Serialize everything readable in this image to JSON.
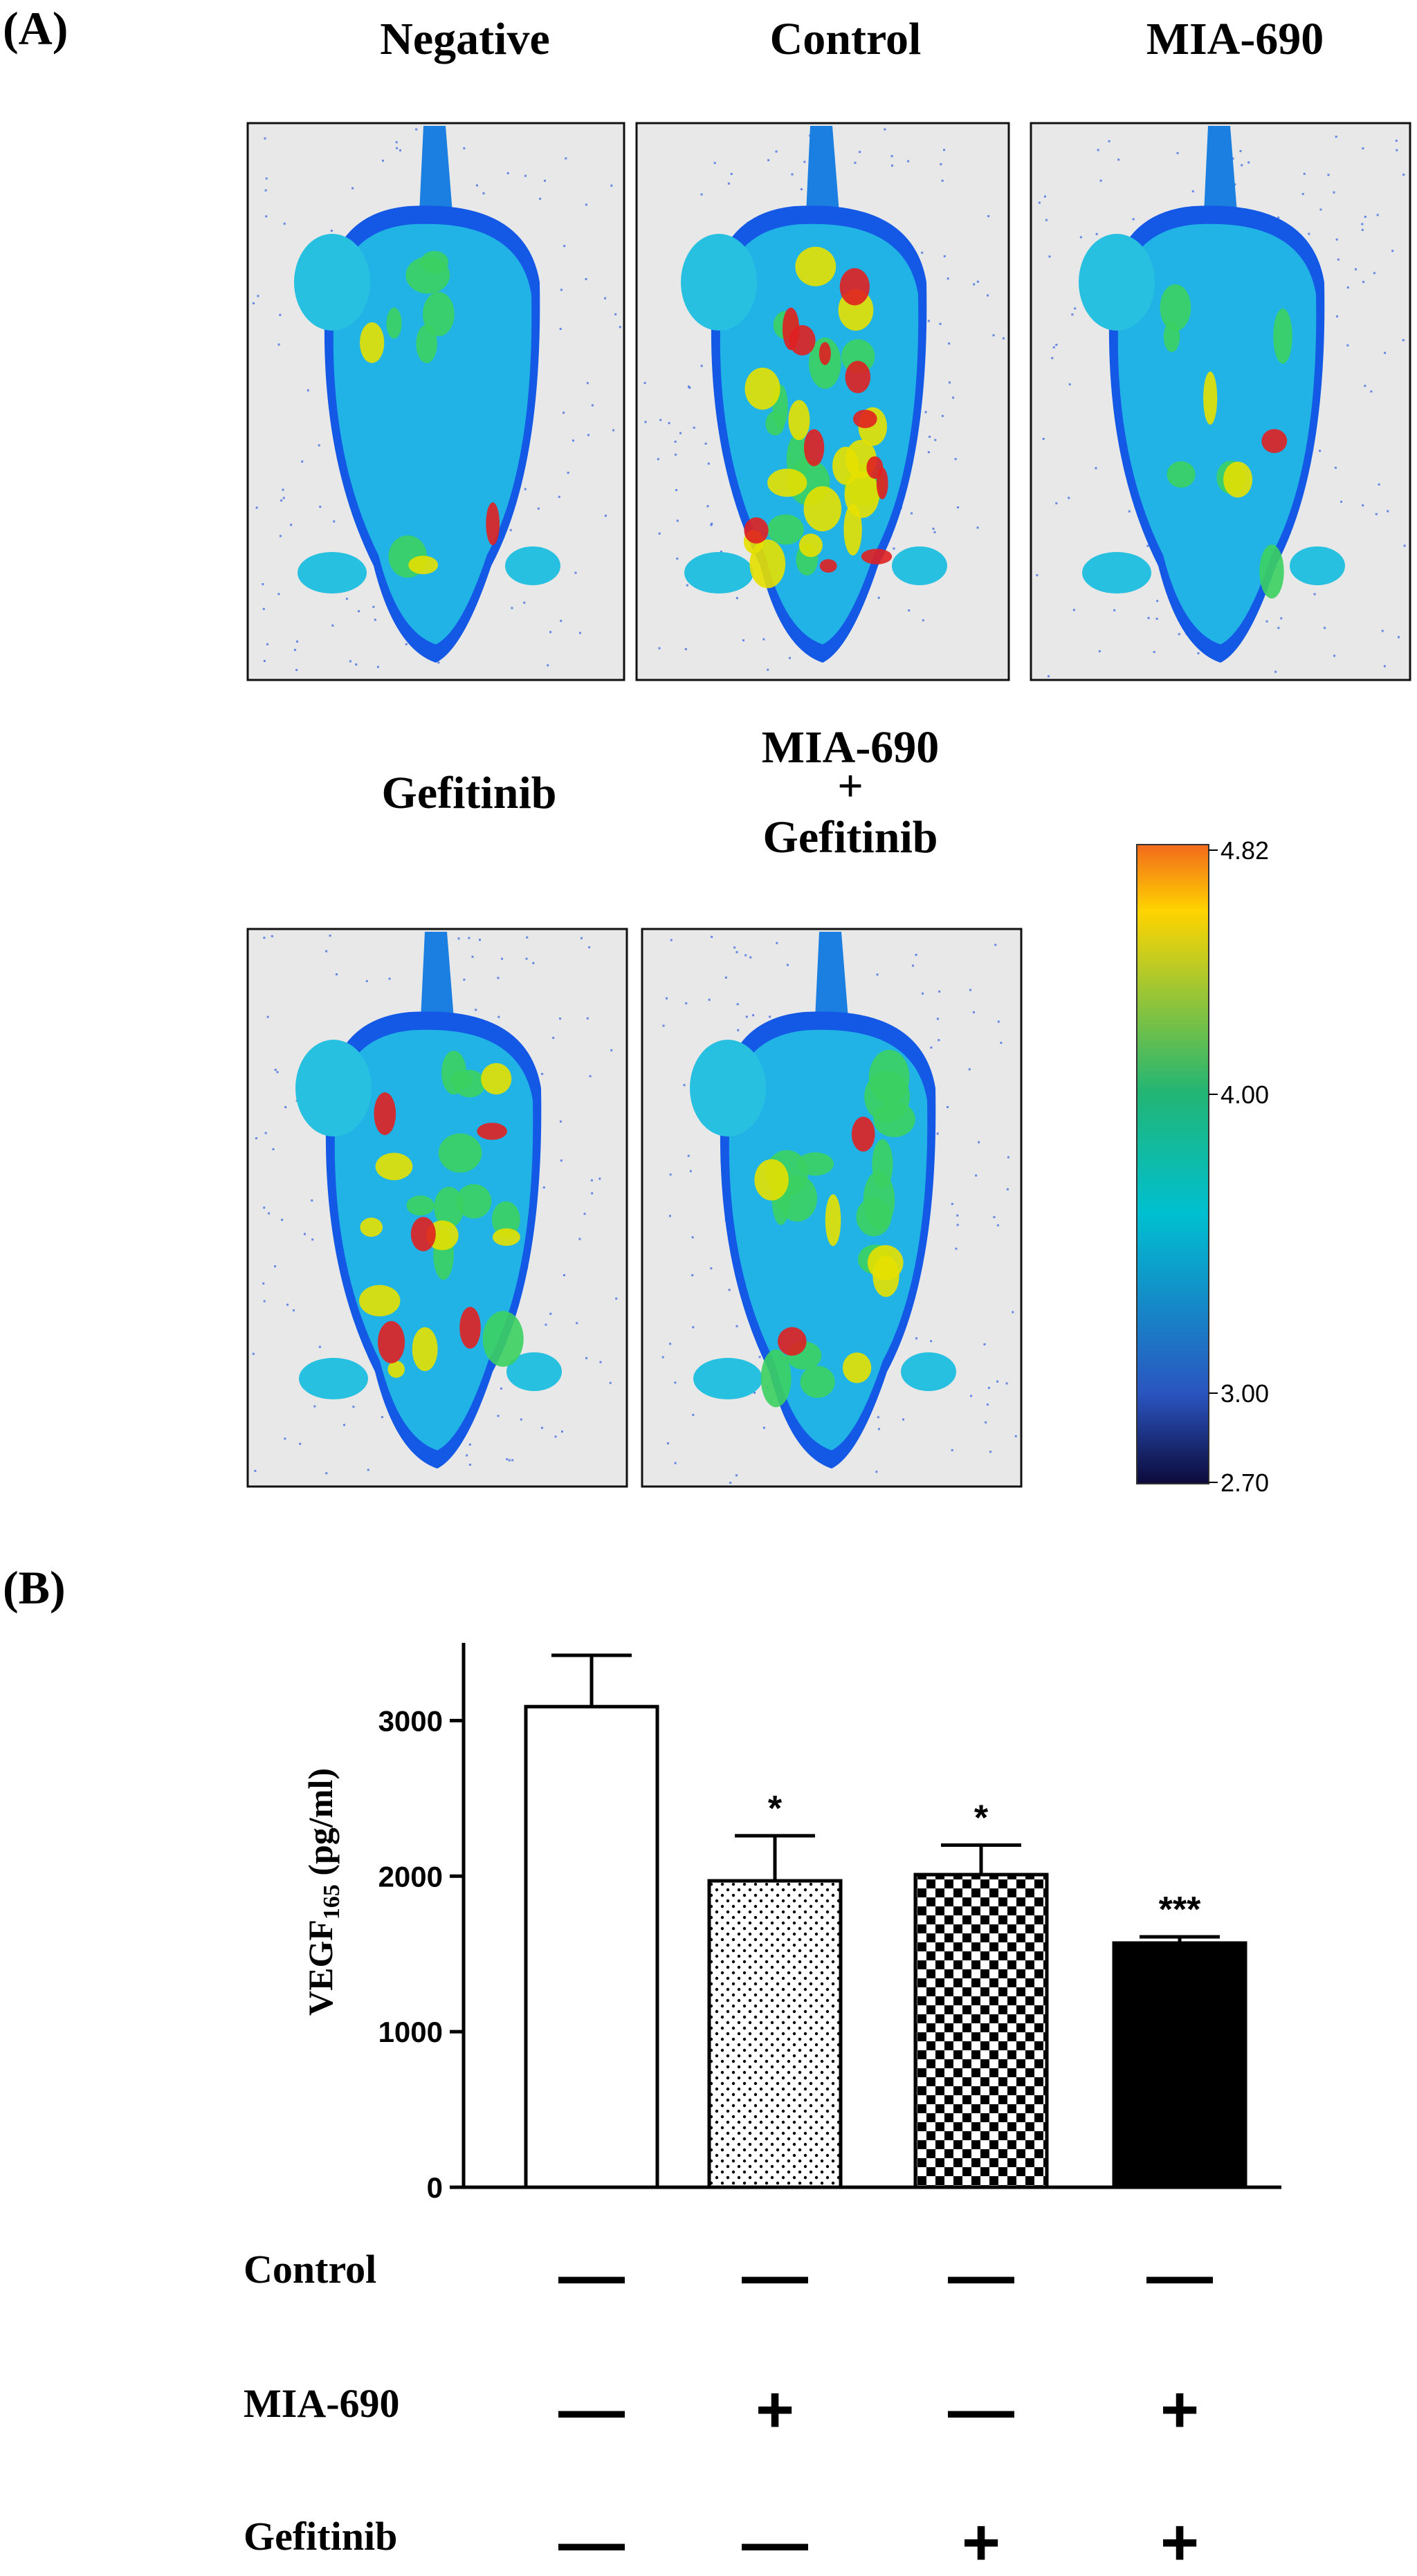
{
  "panel_a": {
    "letter": "(A)",
    "images": [
      {
        "title": "Negative",
        "heat": "low"
      },
      {
        "title": "Control",
        "heat": "high"
      },
      {
        "title": "MIA-690",
        "heat": "low"
      },
      {
        "title": "Gefitinib",
        "heat": "mid"
      },
      {
        "title_line1": "MIA-690",
        "title_line2": "+",
        "title_line3": "Gefitinib",
        "heat": "mid-low"
      }
    ],
    "colorbar": {
      "labels": [
        "4.82",
        "4.00",
        "3.00",
        "2.70"
      ],
      "stops": [
        {
          "value": 4.82,
          "color": "#f26a1b"
        },
        {
          "value": 4.6,
          "color": "#ffd400"
        },
        {
          "value": 4.0,
          "color": "#22b573"
        },
        {
          "value": 3.6,
          "color": "#00c0d0"
        },
        {
          "value": 3.0,
          "color": "#2a55c0"
        },
        {
          "value": 2.7,
          "color": "#0c0a3a"
        }
      ]
    }
  },
  "chart_data": {
    "type": "bar",
    "panel_letter": "(B)",
    "ylabel_main": "VEGF",
    "ylabel_sub": "165",
    "ylabel_unit": " (pg/ml)",
    "ylim": [
      0,
      3500
    ],
    "yticks": [
      "0",
      "1000",
      "2000",
      "3000"
    ],
    "ytick_values": [
      0,
      1000,
      2000,
      3000
    ],
    "values": [
      3090,
      1970,
      2010,
      1570
    ],
    "errors": [
      330,
      290,
      190,
      40
    ],
    "significance": [
      "",
      "*",
      "*",
      "***"
    ],
    "fills": [
      "white",
      "dots",
      "checker",
      "black"
    ],
    "treatment_rows": [
      {
        "label": "Control",
        "signs": [
          "—",
          "—",
          "—",
          "—"
        ]
      },
      {
        "label": "MIA-690",
        "signs": [
          "—",
          "+",
          "—",
          "+"
        ]
      },
      {
        "label": "Gefitinib",
        "signs": [
          "—",
          "—",
          "+",
          "+"
        ]
      }
    ]
  }
}
